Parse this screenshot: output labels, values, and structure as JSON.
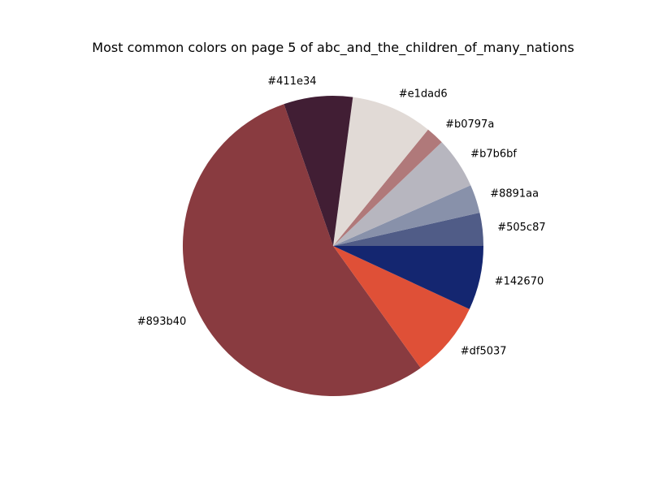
{
  "chart_data": {
    "type": "pie",
    "title": "Most common colors on page 5 of abc_and_the_children_of_many_nations",
    "start_angle_deg": 0,
    "direction": "counterclockwise",
    "legend": "none",
    "slices": [
      {
        "label": "#505c87",
        "value": 3.6,
        "color": "#505c87"
      },
      {
        "label": "#8891aa",
        "value": 3.1,
        "color": "#8891aa"
      },
      {
        "label": "#b7b6bf",
        "value": 5.6,
        "color": "#b7b6bf"
      },
      {
        "label": "#b0797a",
        "value": 2.0,
        "color": "#b0797a"
      },
      {
        "label": "#e1dad6",
        "value": 8.9,
        "color": "#e1dad6"
      },
      {
        "label": "#411e34",
        "value": 7.5,
        "color": "#411e34"
      },
      {
        "label": "#893b40",
        "value": 55.3,
        "color": "#893b40"
      },
      {
        "label": "#df5037",
        "value": 8.3,
        "color": "#df5037"
      },
      {
        "label": "#142670",
        "value": 7.0,
        "color": "#142670"
      }
    ]
  }
}
